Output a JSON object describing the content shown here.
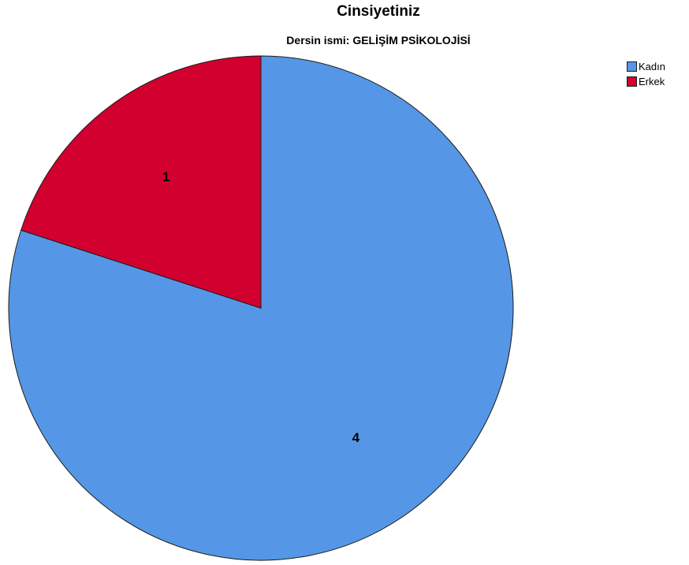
{
  "chart_data": {
    "type": "pie",
    "title": "Cinsiyetiniz",
    "subtitle": "Dersin ismi: GELİŞİM PSİKOLOJİSİ",
    "legend_position": "top-right",
    "slices": [
      {
        "label": "Kadın",
        "value": 4,
        "data_label": "4",
        "color": "#5597e6"
      },
      {
        "label": "Erkek",
        "value": 1,
        "data_label": "1",
        "color": "#d2002f"
      }
    ]
  }
}
